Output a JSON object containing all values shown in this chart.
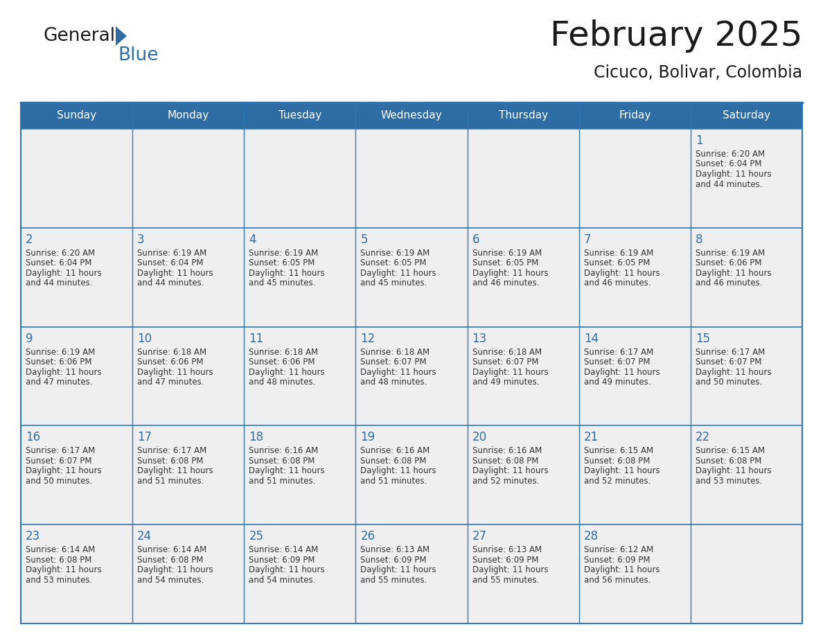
{
  "title": "February 2025",
  "subtitle": "Cicuco, Bolivar, Colombia",
  "days_of_week": [
    "Sunday",
    "Monday",
    "Tuesday",
    "Wednesday",
    "Thursday",
    "Friday",
    "Saturday"
  ],
  "header_bg": "#2E6DA4",
  "header_text": "#FFFFFF",
  "cell_bg": "#EFEFEF",
  "cell_bg_empty": "#EFEFEF",
  "border_color": "#2E75B6",
  "text_color": "#333333",
  "day_number_color": "#2E6DA4",
  "calendar_data": [
    [
      null,
      null,
      null,
      null,
      null,
      null,
      {
        "day": 1,
        "sunrise": "6:20 AM",
        "sunset": "6:04 PM",
        "daylight": "11 hours and 44 minutes."
      }
    ],
    [
      {
        "day": 2,
        "sunrise": "6:20 AM",
        "sunset": "6:04 PM",
        "daylight": "11 hours and 44 minutes."
      },
      {
        "day": 3,
        "sunrise": "6:19 AM",
        "sunset": "6:04 PM",
        "daylight": "11 hours and 44 minutes."
      },
      {
        "day": 4,
        "sunrise": "6:19 AM",
        "sunset": "6:05 PM",
        "daylight": "11 hours and 45 minutes."
      },
      {
        "day": 5,
        "sunrise": "6:19 AM",
        "sunset": "6:05 PM",
        "daylight": "11 hours and 45 minutes."
      },
      {
        "day": 6,
        "sunrise": "6:19 AM",
        "sunset": "6:05 PM",
        "daylight": "11 hours and 46 minutes."
      },
      {
        "day": 7,
        "sunrise": "6:19 AM",
        "sunset": "6:05 PM",
        "daylight": "11 hours and 46 minutes."
      },
      {
        "day": 8,
        "sunrise": "6:19 AM",
        "sunset": "6:06 PM",
        "daylight": "11 hours and 46 minutes."
      }
    ],
    [
      {
        "day": 9,
        "sunrise": "6:19 AM",
        "sunset": "6:06 PM",
        "daylight": "11 hours and 47 minutes."
      },
      {
        "day": 10,
        "sunrise": "6:18 AM",
        "sunset": "6:06 PM",
        "daylight": "11 hours and 47 minutes."
      },
      {
        "day": 11,
        "sunrise": "6:18 AM",
        "sunset": "6:06 PM",
        "daylight": "11 hours and 48 minutes."
      },
      {
        "day": 12,
        "sunrise": "6:18 AM",
        "sunset": "6:07 PM",
        "daylight": "11 hours and 48 minutes."
      },
      {
        "day": 13,
        "sunrise": "6:18 AM",
        "sunset": "6:07 PM",
        "daylight": "11 hours and 49 minutes."
      },
      {
        "day": 14,
        "sunrise": "6:17 AM",
        "sunset": "6:07 PM",
        "daylight": "11 hours and 49 minutes."
      },
      {
        "day": 15,
        "sunrise": "6:17 AM",
        "sunset": "6:07 PM",
        "daylight": "11 hours and 50 minutes."
      }
    ],
    [
      {
        "day": 16,
        "sunrise": "6:17 AM",
        "sunset": "6:07 PM",
        "daylight": "11 hours and 50 minutes."
      },
      {
        "day": 17,
        "sunrise": "6:17 AM",
        "sunset": "6:08 PM",
        "daylight": "11 hours and 51 minutes."
      },
      {
        "day": 18,
        "sunrise": "6:16 AM",
        "sunset": "6:08 PM",
        "daylight": "11 hours and 51 minutes."
      },
      {
        "day": 19,
        "sunrise": "6:16 AM",
        "sunset": "6:08 PM",
        "daylight": "11 hours and 51 minutes."
      },
      {
        "day": 20,
        "sunrise": "6:16 AM",
        "sunset": "6:08 PM",
        "daylight": "11 hours and 52 minutes."
      },
      {
        "day": 21,
        "sunrise": "6:15 AM",
        "sunset": "6:08 PM",
        "daylight": "11 hours and 52 minutes."
      },
      {
        "day": 22,
        "sunrise": "6:15 AM",
        "sunset": "6:08 PM",
        "daylight": "11 hours and 53 minutes."
      }
    ],
    [
      {
        "day": 23,
        "sunrise": "6:14 AM",
        "sunset": "6:08 PM",
        "daylight": "11 hours and 53 minutes."
      },
      {
        "day": 24,
        "sunrise": "6:14 AM",
        "sunset": "6:08 PM",
        "daylight": "11 hours and 54 minutes."
      },
      {
        "day": 25,
        "sunrise": "6:14 AM",
        "sunset": "6:09 PM",
        "daylight": "11 hours and 54 minutes."
      },
      {
        "day": 26,
        "sunrise": "6:13 AM",
        "sunset": "6:09 PM",
        "daylight": "11 hours and 55 minutes."
      },
      {
        "day": 27,
        "sunrise": "6:13 AM",
        "sunset": "6:09 PM",
        "daylight": "11 hours and 55 minutes."
      },
      {
        "day": 28,
        "sunrise": "6:12 AM",
        "sunset": "6:09 PM",
        "daylight": "11 hours and 56 minutes."
      },
      null
    ]
  ],
  "logo_text_general": "General",
  "logo_text_blue": "Blue",
  "logo_color_general": "#1a1a1a",
  "logo_color_blue": "#2E6DA4",
  "fig_width": 11.88,
  "fig_height": 9.18,
  "dpi": 100
}
